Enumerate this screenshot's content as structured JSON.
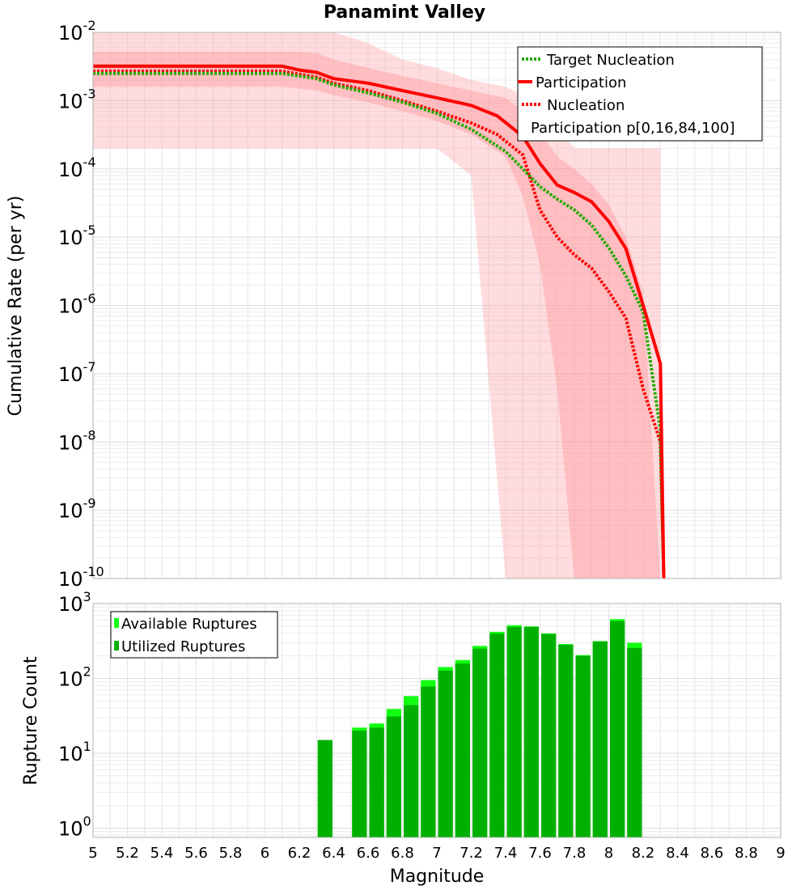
{
  "chart_data": [
    {
      "type": "line",
      "title": "Panamint Valley",
      "xlabel": "",
      "ylabel": "Cumulative Rate (per yr)",
      "xlim": [
        5,
        9
      ],
      "ylim": [
        1e-10,
        0.01
      ],
      "yscale": "log",
      "grid": true,
      "legend_position": "top-right",
      "ytick_labels": [
        {
          "base": "10",
          "exp": "-2",
          "value": 0.01
        },
        {
          "base": "10",
          "exp": "-3",
          "value": 0.001
        },
        {
          "base": "10",
          "exp": "-4",
          "value": 0.0001
        },
        {
          "base": "10",
          "exp": "-5",
          "value": 1e-05
        },
        {
          "base": "10",
          "exp": "-6",
          "value": 1e-06
        },
        {
          "base": "10",
          "exp": "-7",
          "value": 1e-07
        },
        {
          "base": "10",
          "exp": "-8",
          "value": 1e-08
        },
        {
          "base": "10",
          "exp": "-9",
          "value": 1e-09
        },
        {
          "base": "10",
          "exp": "-10",
          "value": 1e-10
        }
      ],
      "series": [
        {
          "name": "Target Nucleation",
          "color": "#22aa00",
          "style": "dotted",
          "x": [
            5.0,
            6.1,
            6.3,
            6.4,
            6.6,
            6.8,
            7.0,
            7.2,
            7.4,
            7.5,
            7.6,
            7.7,
            7.8,
            7.9,
            8.0,
            8.1,
            8.2,
            8.3,
            8.32
          ],
          "y": [
            0.0025,
            0.0025,
            0.0021,
            0.0017,
            0.0013,
            0.00095,
            0.00065,
            0.00038,
            0.00018,
            0.0001,
            5.5e-05,
            3.6e-05,
            2.5e-05,
            1.5e-05,
            7e-06,
            2.7e-06,
            8e-07,
            1.5e-08,
            1e-10
          ]
        },
        {
          "name": "Participation",
          "color": "#ff0000",
          "style": "solid",
          "x": [
            5.0,
            6.1,
            6.2,
            6.3,
            6.4,
            6.6,
            6.8,
            7.0,
            7.2,
            7.35,
            7.5,
            7.6,
            7.7,
            7.8,
            7.9,
            8.0,
            8.1,
            8.2,
            8.3,
            8.32
          ],
          "y": [
            0.0032,
            0.0032,
            0.0028,
            0.0026,
            0.0021,
            0.0018,
            0.0014,
            0.0011,
            0.00085,
            0.0006,
            0.0003,
            0.00012,
            5.8e-05,
            4.5e-05,
            3.3e-05,
            1.7e-05,
            6.8e-06,
            1e-06,
            1.4e-07,
            1e-10
          ]
        },
        {
          "name": "Nucleation",
          "color": "#ff0000",
          "style": "dotted",
          "x": [
            5.0,
            6.1,
            6.3,
            6.4,
            6.6,
            6.8,
            7.0,
            7.2,
            7.35,
            7.5,
            7.6,
            7.7,
            7.8,
            7.9,
            8.0,
            8.1,
            8.2,
            8.3,
            8.32
          ],
          "y": [
            0.0027,
            0.0027,
            0.0022,
            0.0018,
            0.0014,
            0.001,
            0.0007,
            0.00047,
            0.00032,
            0.00016,
            2.5e-05,
            1e-05,
            5.5e-06,
            3.5e-06,
            1.6e-06,
            6.5e-07,
            6e-08,
            1e-08,
            1e-10
          ]
        }
      ],
      "bands": [
        {
          "name": "Participation p[0,16,84,100]",
          "color": "#ff9aa0",
          "x": [
            5.0,
            6.0,
            6.1,
            6.2,
            6.3,
            6.4,
            6.6,
            6.8,
            7.0,
            7.2,
            7.4,
            7.5,
            7.6,
            7.7,
            7.8,
            7.9,
            8.0,
            8.1,
            8.2,
            8.3
          ],
          "p0": [
            0.0002,
            0.0002,
            0.0002,
            0.0002,
            0.0002,
            0.0002,
            0.0002,
            0.0002,
            0.0002,
            8e-05,
            1e-10,
            1e-10,
            1e-10,
            1e-10,
            1e-10,
            1e-10,
            1e-10,
            1e-10,
            1e-10,
            1e-10
          ],
          "p16": [
            0.0016,
            0.0016,
            0.0016,
            0.0015,
            0.0014,
            0.0012,
            0.00095,
            0.0007,
            0.0005,
            0.00032,
            0.00015,
            4e-05,
            4e-06,
            6e-08,
            1e-10,
            1e-10,
            1e-10,
            1e-10,
            1e-10,
            1e-10
          ],
          "p84": [
            0.0052,
            0.0052,
            0.0052,
            0.0052,
            0.005,
            0.004,
            0.003,
            0.0023,
            0.0018,
            0.0014,
            0.0011,
            0.0007,
            0.00035,
            0.00015,
            0.0001,
            6e-05,
            3e-05,
            1e-05,
            1.5e-06,
            1e-10
          ],
          "p100": [
            0.01,
            0.01,
            0.01,
            0.01,
            0.01,
            0.01,
            0.007,
            0.004,
            0.003,
            0.002,
            0.0016,
            0.0012,
            0.0008,
            0.0004,
            0.0002,
            0.0002,
            0.0002,
            0.0002,
            0.0002,
            0.0002
          ]
        }
      ],
      "legend": [
        {
          "label": "Target Nucleation",
          "style": "dotted",
          "color": "#22aa00"
        },
        {
          "label": "Participation",
          "style": "solid",
          "color": "#ff0000"
        },
        {
          "label": "Nucleation",
          "style": "dotted",
          "color": "#ff0000"
        },
        {
          "label": "Participation p[0,16,84,100]",
          "style": "none",
          "color": ""
        }
      ]
    },
    {
      "type": "bar",
      "title": "",
      "xlabel": "Magnitude",
      "ylabel": "Rupture Count",
      "xlim": [
        5,
        9
      ],
      "ylim": [
        0.75,
        1000
      ],
      "yscale": "log",
      "grid": true,
      "legend_position": "top-left",
      "bin_width": 0.1,
      "xtick_labels": [
        "5",
        "5.2",
        "5.4",
        "5.6",
        "5.8",
        "6",
        "6.2",
        "6.4",
        "6.6",
        "6.8",
        "7",
        "7.2",
        "7.4",
        "7.6",
        "7.8",
        "8",
        "8.2",
        "8.4",
        "8.6",
        "8.8",
        "9"
      ],
      "ytick_labels": [
        {
          "base": "10",
          "exp": "3",
          "value": 1000
        },
        {
          "base": "10",
          "exp": "2",
          "value": 100
        },
        {
          "base": "10",
          "exp": "1",
          "value": 10
        },
        {
          "base": "10",
          "exp": "0",
          "value": 1
        }
      ],
      "categories": [
        6.35,
        6.55,
        6.65,
        6.75,
        6.85,
        6.95,
        7.05,
        7.15,
        7.25,
        7.35,
        7.45,
        7.55,
        7.65,
        7.75,
        7.85,
        7.95,
        8.05,
        8.15
      ],
      "series": [
        {
          "name": "Available Ruptures",
          "color": "#11ff11",
          "values": [
            15,
            22,
            25,
            39,
            58,
            95,
            142,
            176,
            272,
            420,
            515,
            495,
            400,
            288,
            205,
            315,
            620,
            300
          ]
        },
        {
          "name": "Utilized Ruptures",
          "color": "#00b000",
          "values": [
            15,
            20,
            22,
            31,
            44,
            78,
            127,
            158,
            250,
            395,
            488,
            488,
            392,
            282,
            200,
            310,
            585,
            255
          ]
        }
      ],
      "legend": [
        {
          "label": "Available Ruptures",
          "color": "#11ff11"
        },
        {
          "label": "Utilized Ruptures",
          "color": "#00b000"
        }
      ]
    }
  ]
}
